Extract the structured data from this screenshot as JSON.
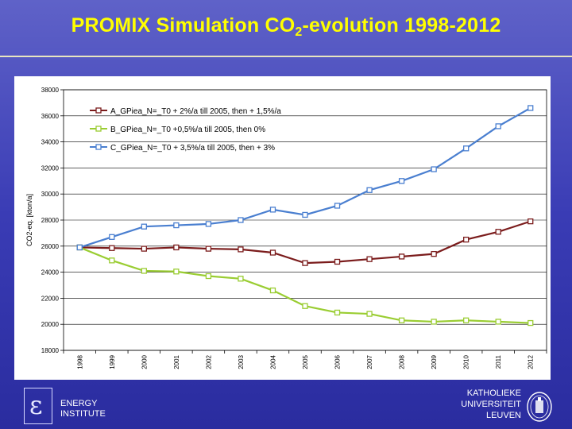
{
  "slide": {
    "title_prefix": "PROMIX Simulation CO",
    "title_sub": "2",
    "title_suffix": "-evolution 1998-2012",
    "footer_left_symbol": "ε",
    "footer_left_line1": "ENERGY",
    "footer_left_line2": "INSTITUTE",
    "footer_right_line1": "KATHOLIEKE",
    "footer_right_line2": "UNIVERSITEIT",
    "footer_right_line3": "LEUVEN"
  },
  "colors": {
    "series_a": "#7b1c1c",
    "series_b": "#9acd32",
    "series_c": "#4a7fd0",
    "grid": "#000000"
  },
  "chart_data": {
    "type": "line",
    "title": "",
    "xlabel": "",
    "ylabel": "CO2-eq. [kton/a]",
    "ylim": [
      18000,
      38000
    ],
    "yticks": [
      18000,
      20000,
      22000,
      24000,
      26000,
      28000,
      30000,
      32000,
      34000,
      36000,
      38000
    ],
    "ytick_labels": [
      "18000",
      "20000",
      "22000",
      "24000",
      "26000",
      "28000",
      "30000",
      "32000",
      "34000",
      "36000",
      "38000"
    ],
    "categories": [
      "1998",
      "1999",
      "2000",
      "2001",
      "2002",
      "2003",
      "2004",
      "2005",
      "2006",
      "2007",
      "2008",
      "2009",
      "2010",
      "2011",
      "2012"
    ],
    "legend_position": "top-left",
    "series": [
      {
        "name": "A_GPiea_N=_T0 + 2%/a till 2005, then + 1,5%/a",
        "color_key": "series_a",
        "values": [
          25900,
          25850,
          25800,
          25900,
          25800,
          25750,
          25500,
          24700,
          24800,
          25000,
          25200,
          25400,
          26500,
          27100,
          27900
        ]
      },
      {
        "name": "B_GPiea_N=_T0 +0,5%/a till 2005, then 0%",
        "color_key": "series_b",
        "values": [
          25900,
          24900,
          24100,
          24050,
          23700,
          23500,
          22600,
          21400,
          20900,
          20800,
          20300,
          20200,
          20300,
          20200,
          20100
        ]
      },
      {
        "name": "C_GPiea_N=_T0 + 3,5%/a till 2005, then + 3%",
        "color_key": "series_c",
        "values": [
          25900,
          26700,
          27500,
          27600,
          27700,
          28000,
          28800,
          28400,
          29100,
          30300,
          31000,
          31900,
          33500,
          35200,
          36600
        ]
      }
    ]
  }
}
